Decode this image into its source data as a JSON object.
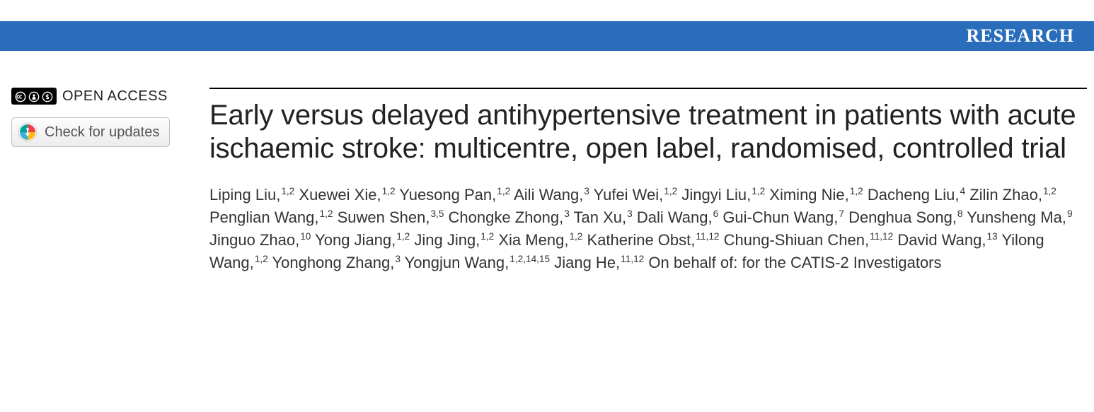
{
  "banner": {
    "label": "RESEARCH",
    "background_color": "#2a6ebb",
    "text_color": "#ffffff"
  },
  "sidebar": {
    "open_access_label": "OPEN ACCESS",
    "cc_icons": [
      "cc",
      "by",
      "nc"
    ],
    "check_updates_label": "Check for updates"
  },
  "article": {
    "title": "Early versus delayed antihypertensive treatment in patients with acute ischaemic stroke: multicentre, open label, randomised, controlled trial",
    "authors": [
      {
        "name": "Liping Liu",
        "affil": "1,2"
      },
      {
        "name": "Xuewei Xie",
        "affil": "1,2"
      },
      {
        "name": "Yuesong Pan",
        "affil": "1,2"
      },
      {
        "name": "Aili Wang",
        "affil": "3"
      },
      {
        "name": "Yufei Wei",
        "affil": "1,2"
      },
      {
        "name": "Jingyi Liu",
        "affil": "1,2"
      },
      {
        "name": "Ximing Nie",
        "affil": "1,2"
      },
      {
        "name": "Dacheng Liu",
        "affil": "4"
      },
      {
        "name": "Zilin Zhao",
        "affil": "1,2"
      },
      {
        "name": "Penglian Wang",
        "affil": "1,2"
      },
      {
        "name": "Suwen Shen",
        "affil": "3,5"
      },
      {
        "name": "Chongke Zhong",
        "affil": "3"
      },
      {
        "name": "Tan Xu",
        "affil": "3"
      },
      {
        "name": "Dali Wang",
        "affil": "6"
      },
      {
        "name": "Gui-Chun Wang",
        "affil": "7"
      },
      {
        "name": "Denghua Song",
        "affil": "8"
      },
      {
        "name": "Yunsheng Ma",
        "affil": "9"
      },
      {
        "name": "Jinguo Zhao",
        "affil": "10"
      },
      {
        "name": "Yong Jiang",
        "affil": "1,2"
      },
      {
        "name": "Jing Jing",
        "affil": "1,2"
      },
      {
        "name": "Xia Meng",
        "affil": "1,2"
      },
      {
        "name": "Katherine Obst",
        "affil": "11,12"
      },
      {
        "name": "Chung-Shiuan Chen",
        "affil": "11,12"
      },
      {
        "name": "David Wang",
        "affil": "13"
      },
      {
        "name": "Yilong Wang",
        "affil": "1,2"
      },
      {
        "name": "Yonghong Zhang",
        "affil": "3"
      },
      {
        "name": "Yongjun Wang",
        "affil": "1,2,14,15"
      },
      {
        "name": "Jiang He",
        "affil": "11,12"
      }
    ],
    "behalf_text": "On behalf of: for the CATIS-2 Investigators"
  },
  "style": {
    "title_fontsize": 40,
    "author_fontsize": 22,
    "title_color": "#222222",
    "author_color": "#333333",
    "rule_color": "#000000"
  }
}
